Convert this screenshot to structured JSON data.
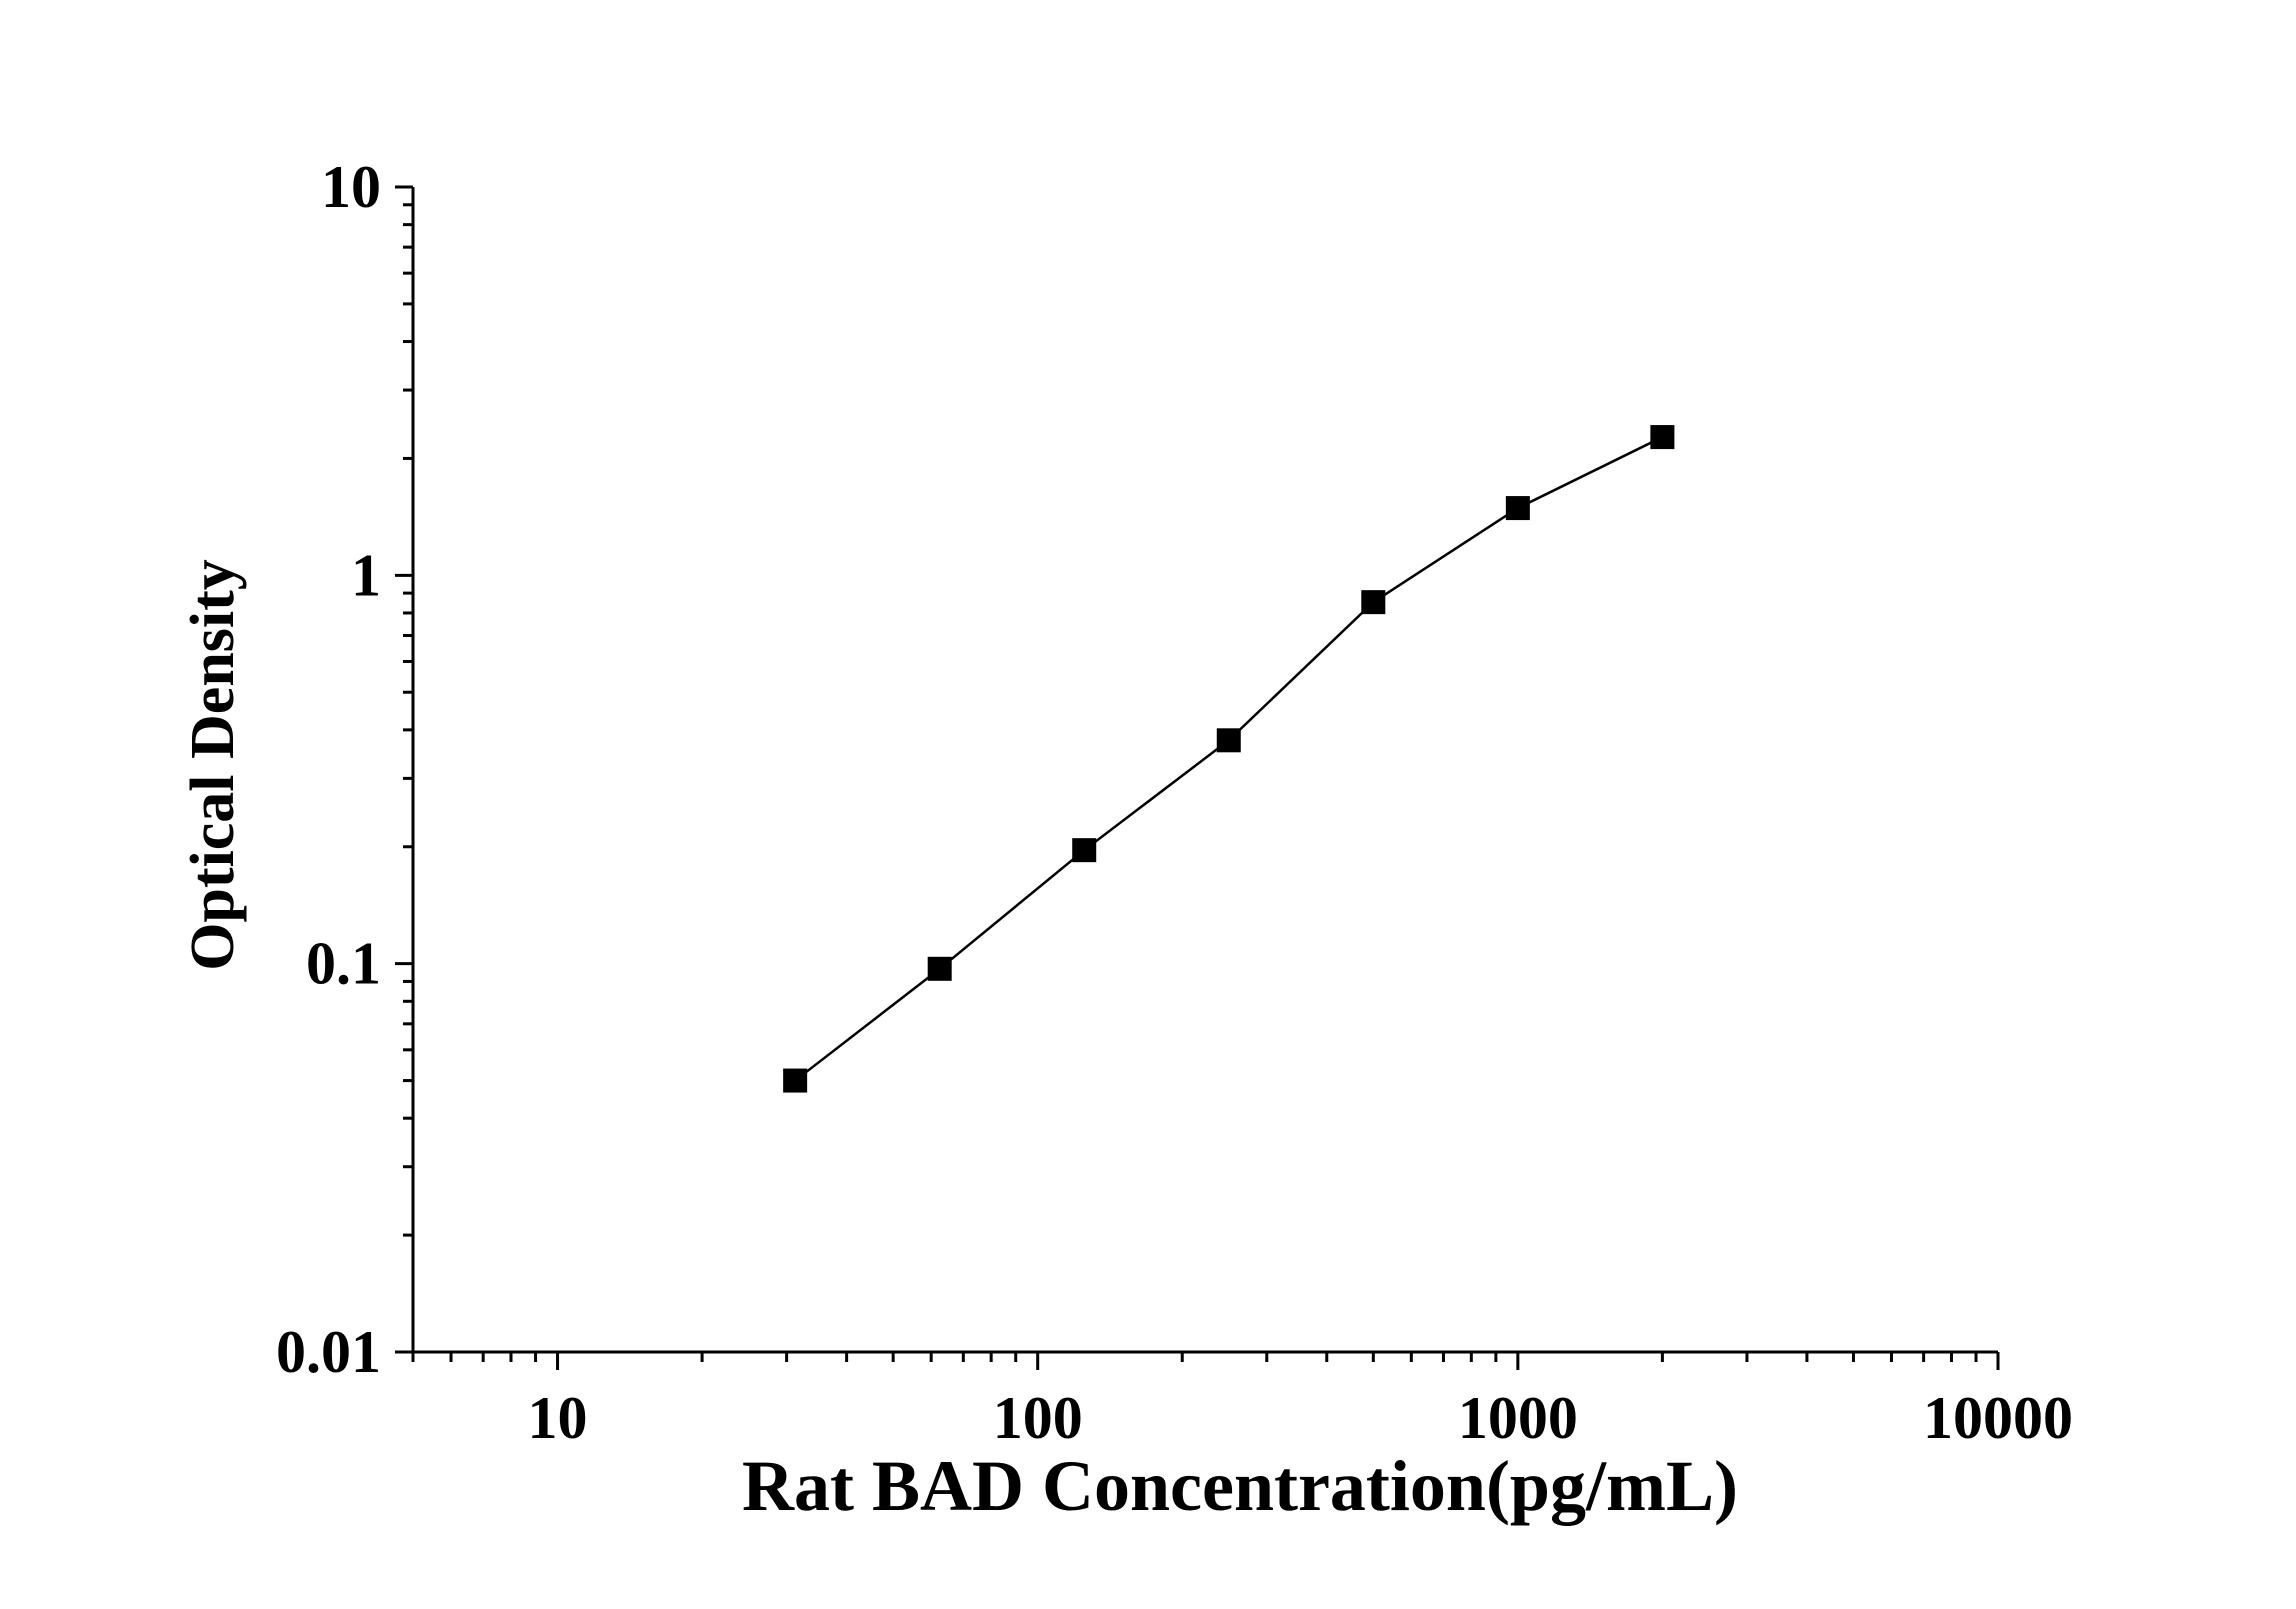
{
  "chart_data": {
    "type": "line",
    "title": "",
    "xlabel": "Rat BAD Concentration(pg/mL)",
    "ylabel": "Optical Density",
    "xscale": "log",
    "yscale": "log",
    "xlim": [
      5,
      10000
    ],
    "ylim": [
      0.01,
      10
    ],
    "x_tick_labels": [
      "10",
      "100",
      "1000",
      "10000"
    ],
    "y_tick_labels": [
      "0.01",
      "0.1",
      "1",
      "10"
    ],
    "grid": false,
    "legend": "none",
    "marker": "square",
    "series": [
      {
        "x": [
          31.25,
          62.5,
          125,
          250,
          500,
          1000,
          2000
        ],
        "values": [
          0.05,
          0.097,
          0.196,
          0.376,
          0.853,
          1.49,
          2.27
        ]
      }
    ],
    "colors": {
      "line": "#000000",
      "marker": "#000000",
      "axis": "#000000"
    }
  }
}
